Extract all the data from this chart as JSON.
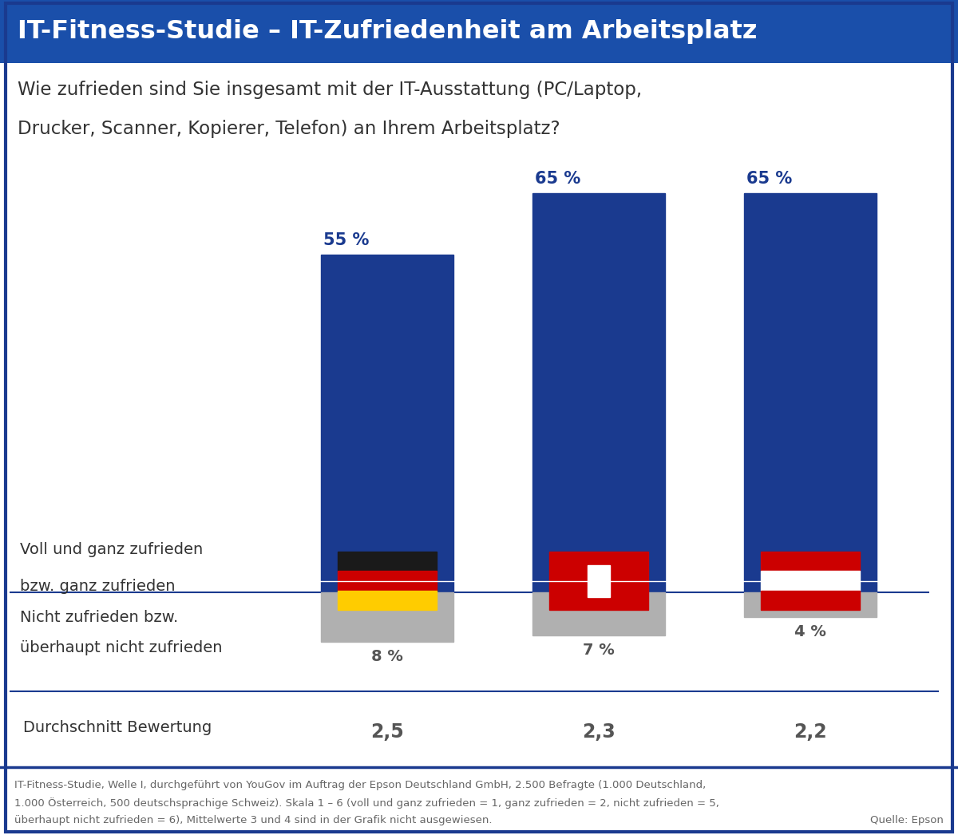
{
  "title": "IT-Fitness-Studie – IT-Zufriedenheit am Arbeitsplatz",
  "title_bg": "#1a4faa",
  "title_color": "#ffffff",
  "subtitle_line1": "Wie zufrieden sind Sie insgesamt mit der IT-Ausstattung (PC/Laptop,",
  "subtitle_line2": "Drucker, Scanner, Kopierer, Telefon) an Ihrem Arbeitsplatz?",
  "countries": [
    "Deutschland",
    "Schweiz",
    "Österreich"
  ],
  "satisfied_values": [
    55,
    65,
    65
  ],
  "unsatisfied_values": [
    8,
    7,
    4
  ],
  "avg_ratings": [
    "2,5",
    "2,3",
    "2,2"
  ],
  "bar_color_satisfied": "#1a3a8f",
  "bar_color_unsatisfied": "#b0b0b0",
  "satisfied_label_line1": "Voll und ganz zufrieden",
  "satisfied_label_line2": "bzw. ganz zufrieden",
  "unsatisfied_label_line1": "Nicht zufrieden bzw.",
  "unsatisfied_label_line2": "überhaupt nicht zufrieden",
  "avg_label": "Durchschnitt Bewertung",
  "footnote_line1": "IT-Fitness-Studie, Welle I, durchgeführt von YouGov im Auftrag der Epson Deutschland GmbH, 2.500 Befragte (1.000 Deutschland,",
  "footnote_line2": "1.000 Österreich, 500 deutschsprachige Schweiz). Skala 1 – 6 (voll und ganz zufrieden = 1, ganz zufrieden = 2, nicht zufrieden = 5,",
  "footnote_line3": "überhaupt nicht zufrieden = 6), Mittelwerte 3 und 4 sind in der Grafik nicht ausgewiesen.",
  "footnote_source": "Quelle: Epson",
  "bg_color": "#ffffff",
  "border_color": "#1a3a8f",
  "text_color": "#333333",
  "value_label_color": "#1a3a8f",
  "avg_value_color": "#555555",
  "footnote_color": "#666666"
}
